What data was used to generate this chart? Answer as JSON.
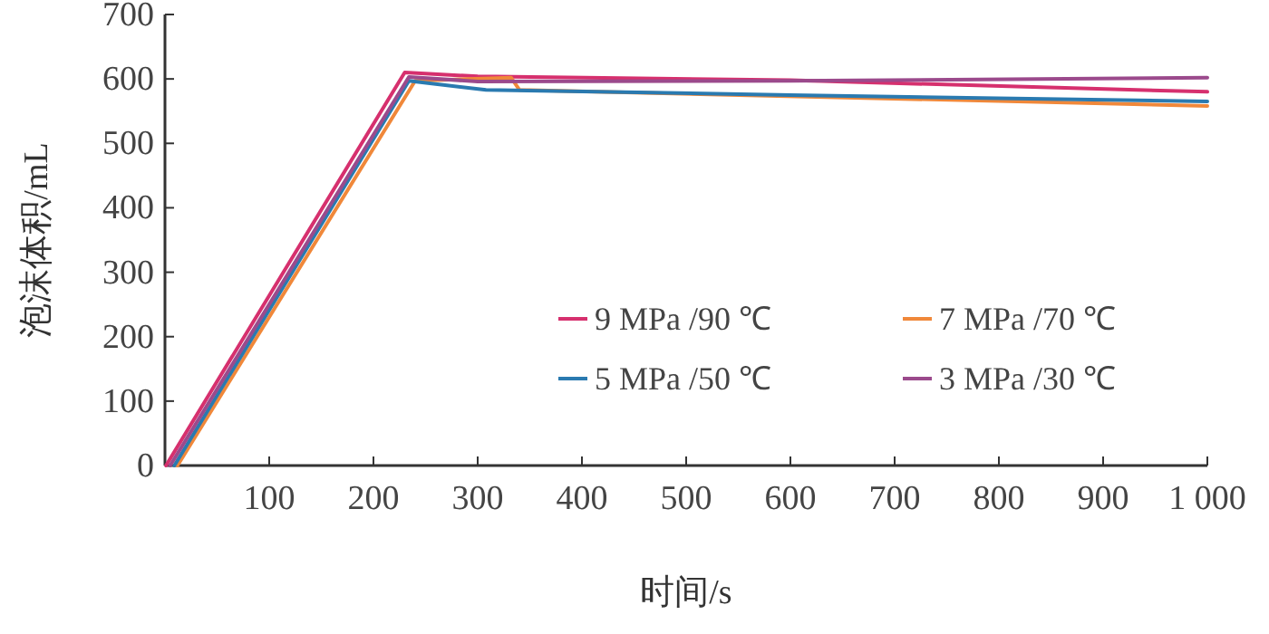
{
  "chart_data": {
    "type": "line",
    "xlabel": "时间/s",
    "ylabel": "泡沫体积/mL",
    "xlim": [
      0,
      1000
    ],
    "ylim": [
      0,
      700
    ],
    "xticks": [
      100,
      200,
      300,
      400,
      500,
      600,
      700,
      800,
      900,
      {
        "value": 1000,
        "label": "1 000"
      }
    ],
    "yticks": [
      0,
      100,
      200,
      300,
      400,
      500,
      600,
      700
    ],
    "legend": "right",
    "grid": false,
    "marker": "none",
    "line_style": "solid",
    "series": [
      {
        "name": "9 MPa /90 ℃",
        "color": "#d6306e",
        "x": [
          1,
          230,
          300,
          600,
          1000
        ],
        "values": [
          0,
          610,
          604,
          598,
          580
        ]
      },
      {
        "name": "7 MPa /70 ℃",
        "color": "#f0883a",
        "x": [
          12,
          240,
          332,
          340,
          1000
        ],
        "values": [
          0,
          597,
          602,
          583,
          558
        ]
      },
      {
        "name": "5 MPa /50 ℃",
        "color": "#2a7ab0",
        "x": [
          9,
          234,
          308,
          600,
          1000
        ],
        "values": [
          0,
          597,
          583,
          575,
          565
        ]
      },
      {
        "name": "3 MPa /30 ℃",
        "color": "#9b4a8c",
        "x": [
          5,
          234,
          300,
          600,
          1000
        ],
        "values": [
          0,
          603,
          596,
          597,
          602
        ]
      }
    ]
  }
}
